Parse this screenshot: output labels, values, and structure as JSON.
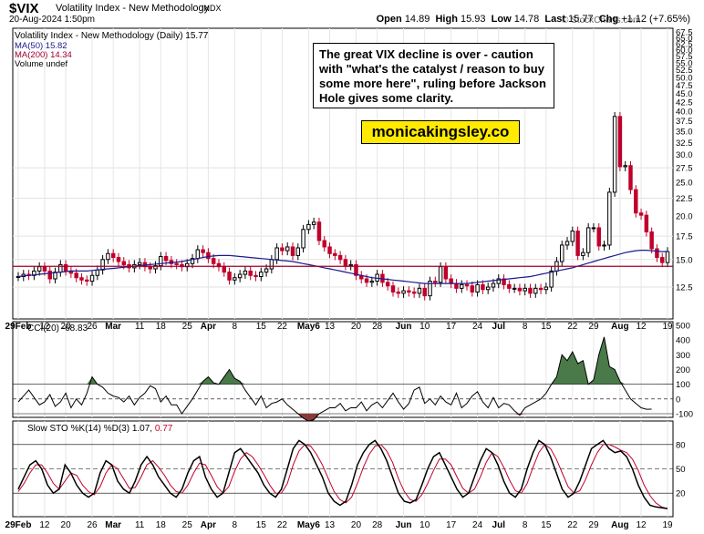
{
  "header": {
    "symbol": "$VIX",
    "name": "Volatility Index - New Methodology",
    "exchange": "INDX",
    "date": "20-Aug-2024 1:50pm",
    "logo": "© StockCharts.com",
    "open_label": "Open",
    "open": "14.89",
    "high_label": "High",
    "high": "15.93",
    "low_label": "Low",
    "low": "14.78",
    "last_label": "Last",
    "last": "15.77",
    "chg_label": "Chg",
    "chg": "+1.12 (+7.65%)"
  },
  "colors": {
    "up": "#000000",
    "down": "#c0002a",
    "ma50": "#1a1a8c",
    "ma200": "#a0002a",
    "cci_fill": "#4a7a4a",
    "cci_neg_fill": "#8a3a3a",
    "stoch_d": "#c0002a",
    "callout_bg": "#ffea00"
  },
  "annotation": {
    "text": "The great VIX decline is over - caution with \"what's the catalyst / reason to buy some more here\", ruling before Jackson Hole gives some clarity.",
    "site": "monicakingsley.co"
  },
  "legend": {
    "main": "Volatility Index - New Methodology (Daily) 15.77",
    "ma50": "MA(50) 15.82",
    "ma200": "MA(200) 14.34",
    "volume": "Volume undef",
    "cci": "CCI(20) -68.83",
    "stoch_prefix": "Slow STO %K(14) %D(3) 1.07,",
    "stoch_d": "0.77"
  },
  "chart_data": [
    {
      "type": "candlestick",
      "title": "Volatility Index - New Methodology (Daily)",
      "y_axis": {
        "min": 10.5,
        "max": 67.5,
        "scale": "log",
        "ticks": [
          12.5,
          15.0,
          17.5,
          20.0,
          22.5,
          25.0,
          27.5,
          30.0,
          32.5,
          35.0,
          37.5,
          40.0,
          42.5,
          45.0,
          47.5,
          50.0,
          52.5,
          55.0,
          57.5,
          60.0,
          62.5,
          65.0,
          67.5
        ],
        "side": "right"
      },
      "x_ticks": [
        "29Feb",
        "12",
        "20",
        "26",
        "Mar",
        "11",
        "18",
        "25",
        "Apr",
        "8",
        "15",
        "22",
        "May6",
        "13",
        "20",
        "28",
        "Jun",
        "10",
        "17",
        "24",
        "Jul",
        "8",
        "15",
        "22",
        "29",
        "Aug",
        "12",
        "19"
      ],
      "closes": [
        13.4,
        13.6,
        13.5,
        13.9,
        14.3,
        13.9,
        13.2,
        13.8,
        14.5,
        13.9,
        13.7,
        13.3,
        13.1,
        13.0,
        13.5,
        14.0,
        15.0,
        15.6,
        15.2,
        14.8,
        14.5,
        14.2,
        14.5,
        14.7,
        14.3,
        14.1,
        14.4,
        15.3,
        14.9,
        14.6,
        14.5,
        14.3,
        14.6,
        15.1,
        16.0,
        15.7,
        15.1,
        14.6,
        14.3,
        13.8,
        13.1,
        13.3,
        13.6,
        13.9,
        13.5,
        13.4,
        13.8,
        14.1,
        15.0,
        16.2,
        15.9,
        16.3,
        15.4,
        16.2,
        18.3,
        18.9,
        19.2,
        17.0,
        16.3,
        15.6,
        15.4,
        15.0,
        14.4,
        14.5,
        13.5,
        13.2,
        12.9,
        13.0,
        13.6,
        12.9,
        12.6,
        12.1,
        12.0,
        12.2,
        12.1,
        12.0,
        12.4,
        11.8,
        13.0,
        12.9,
        14.3,
        13.2,
        12.8,
        12.4,
        12.7,
        12.6,
        12.1,
        12.7,
        12.3,
        12.5,
        12.8,
        13.2,
        12.7,
        12.4,
        12.4,
        12.2,
        12.4,
        12.0,
        12.4,
        12.3,
        12.5,
        13.9,
        14.8,
        16.5,
        16.9,
        18.1,
        15.4,
        15.7,
        18.5,
        18.5,
        16.4,
        16.5,
        23.4,
        38.6,
        27.7,
        27.9,
        23.8,
        20.4,
        20.1,
        18.0,
        16.1,
        15.2,
        14.7,
        15.8
      ],
      "ma50": [
        13.4,
        13.45,
        13.5,
        13.55,
        13.6,
        13.65,
        13.7,
        13.75,
        13.8,
        13.85,
        13.9,
        13.9,
        13.9,
        13.9,
        13.95,
        14.0,
        14.05,
        14.1,
        14.15,
        14.2,
        14.25,
        14.3,
        14.35,
        14.4,
        14.45,
        14.5,
        14.55,
        14.6,
        14.65,
        14.7,
        14.75,
        14.8,
        14.9,
        15.0,
        15.1,
        15.2,
        15.3,
        15.35,
        15.4,
        15.4,
        15.4,
        15.35,
        15.3,
        15.25,
        15.2,
        15.15,
        15.1,
        15.05,
        15.0,
        14.95,
        14.9,
        14.85,
        14.8,
        14.7,
        14.6,
        14.5,
        14.4,
        14.3,
        14.2,
        14.1,
        14.0,
        13.9,
        13.8,
        13.7,
        13.6,
        13.5,
        13.4,
        13.3,
        13.25,
        13.2,
        13.15,
        13.1,
        13.05,
        13.0,
        12.95,
        12.9,
        12.85,
        12.8,
        12.8,
        12.8,
        12.8,
        12.8,
        12.8,
        12.8,
        12.8,
        12.8,
        12.85,
        12.9,
        12.95,
        13.0,
        13.05,
        13.1,
        13.15,
        13.2,
        13.25,
        13.3,
        13.35,
        13.4,
        13.5,
        13.6,
        13.7,
        13.8,
        13.9,
        14.0,
        14.1,
        14.2,
        14.35,
        14.5,
        14.65,
        14.8,
        14.95,
        15.1,
        15.25,
        15.4,
        15.55,
        15.7,
        15.8,
        15.9,
        15.95,
        15.95,
        15.9,
        15.85,
        15.8,
        15.82
      ]
    },
    {
      "type": "line",
      "title": "CCI(20)",
      "y_axis": {
        "min": -100,
        "max": 500,
        "ticks": [
          -100,
          0,
          100,
          200,
          300,
          400,
          500
        ]
      },
      "values": [
        -20,
        20,
        60,
        10,
        -40,
        -20,
        30,
        -50,
        -20,
        40,
        -60,
        0,
        -40,
        40,
        150,
        100,
        80,
        40,
        20,
        10,
        -20,
        20,
        -40,
        10,
        40,
        90,
        70,
        -20,
        20,
        -40,
        -40,
        -100,
        -50,
        0,
        60,
        120,
        150,
        110,
        100,
        150,
        200,
        140,
        120,
        60,
        10,
        -40,
        20,
        -60,
        -30,
        -20,
        0,
        -40,
        -70,
        -100,
        -130,
        -150,
        -140,
        -100,
        -80,
        -60,
        -60,
        -30,
        -80,
        -60,
        -60,
        -20,
        -80,
        -40,
        -20,
        -60,
        -10,
        40,
        -20,
        -70,
        -30,
        60,
        80,
        -30,
        0,
        -40,
        20,
        -20,
        -40,
        40,
        -60,
        -30,
        20,
        50,
        -20,
        -60,
        10,
        -60,
        -30,
        -40,
        -80,
        -110,
        -60,
        -40,
        -20,
        0,
        40,
        100,
        150,
        300,
        260,
        320,
        240,
        260,
        100,
        130,
        300,
        420,
        220,
        200,
        120,
        60,
        0,
        -30,
        -60,
        -70,
        -69
      ]
    },
    {
      "type": "line",
      "title": "Slow STO %K(14) %D(3)",
      "y_axis": {
        "min": 0,
        "max": 100,
        "ticks": [
          20,
          50,
          80
        ]
      },
      "series": [
        {
          "name": "%K(14)",
          "values": [
            25,
            40,
            55,
            60,
            50,
            30,
            20,
            25,
            55,
            45,
            30,
            20,
            15,
            20,
            45,
            60,
            55,
            35,
            25,
            20,
            35,
            55,
            65,
            55,
            40,
            30,
            20,
            15,
            25,
            45,
            60,
            65,
            40,
            25,
            15,
            20,
            45,
            70,
            75,
            65,
            55,
            45,
            30,
            20,
            15,
            25,
            50,
            75,
            85,
            80,
            70,
            55,
            40,
            20,
            10,
            5,
            10,
            30,
            55,
            70,
            80,
            85,
            75,
            60,
            40,
            20,
            10,
            8,
            12,
            30,
            50,
            65,
            70,
            55,
            40,
            25,
            15,
            20,
            40,
            60,
            75,
            70,
            55,
            35,
            20,
            15,
            25,
            50,
            70,
            85,
            80,
            65,
            45,
            25,
            15,
            20,
            35,
            55,
            75,
            80,
            85,
            75,
            70,
            72,
            65,
            50,
            30,
            15,
            5,
            3,
            2,
            1
          ]
        },
        {
          "name": "%D(3)",
          "values": [
            22,
            32,
            45,
            55,
            55,
            45,
            32,
            25,
            35,
            45,
            42,
            30,
            22,
            18,
            28,
            45,
            55,
            50,
            38,
            26,
            27,
            40,
            55,
            60,
            52,
            42,
            30,
            22,
            20,
            30,
            45,
            57,
            55,
            42,
            28,
            20,
            28,
            47,
            62,
            70,
            65,
            55,
            43,
            30,
            20,
            20,
            32,
            55,
            72,
            80,
            78,
            68,
            55,
            38,
            22,
            12,
            8,
            15,
            32,
            52,
            68,
            78,
            80,
            72,
            58,
            38,
            22,
            12,
            10,
            18,
            32,
            48,
            62,
            62,
            55,
            40,
            26,
            20,
            25,
            40,
            58,
            70,
            65,
            52,
            36,
            23,
            20,
            32,
            52,
            70,
            80,
            75,
            62,
            45,
            28,
            20,
            23,
            37,
            55,
            70,
            80,
            80,
            77,
            73,
            70,
            62,
            48,
            30,
            17,
            8,
            3,
            1
          ]
        }
      ]
    }
  ]
}
